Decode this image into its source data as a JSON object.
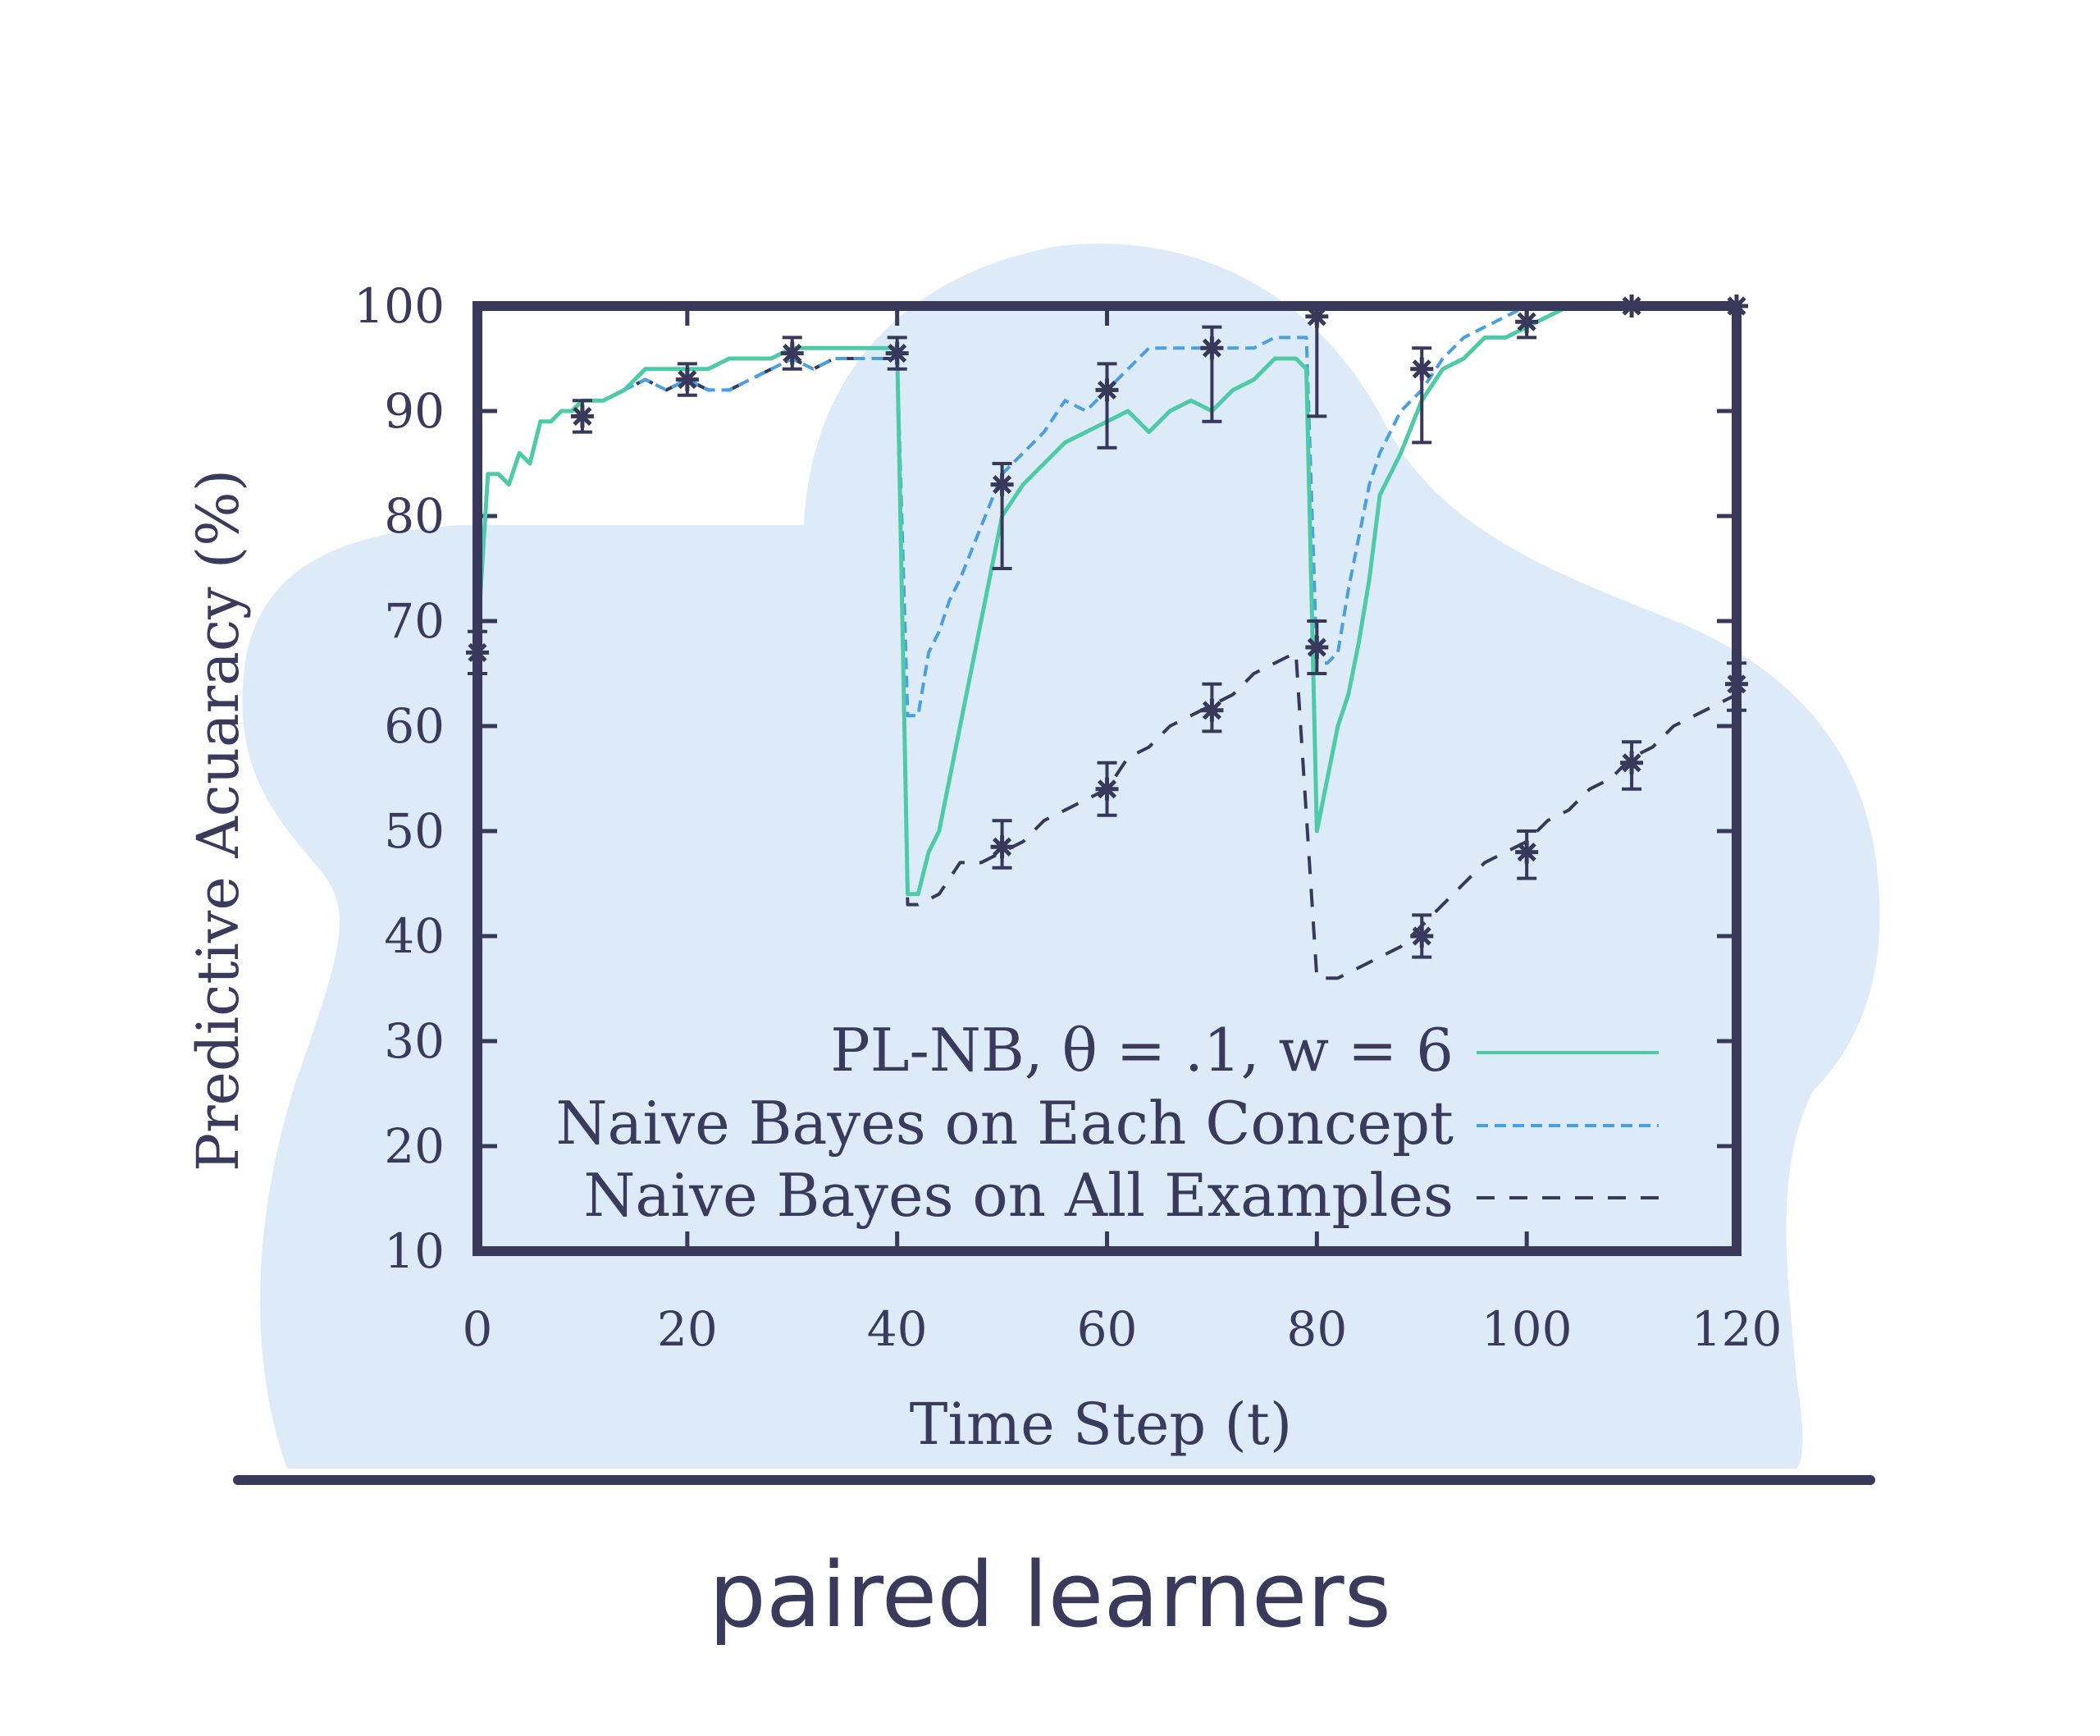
{
  "caption": "paired learners",
  "colors": {
    "background_blob": "#ddebf9",
    "frame": "#38385a",
    "pl_nb": "#4ecba6",
    "nb_each": "#4a9fe3",
    "nb_all": "#38385a",
    "text": "#3a3a5c"
  },
  "chart_data": {
    "type": "line",
    "xlabel": "Time Step (t)",
    "ylabel": "Predictive Acuaracy (%)",
    "xlim": [
      0,
      120
    ],
    "ylim": [
      10,
      100
    ],
    "xticks": [
      "0",
      "20",
      "40",
      "60",
      "80",
      "100",
      "120"
    ],
    "yticks": [
      "10",
      "20",
      "30",
      "40",
      "50",
      "60",
      "70",
      "80",
      "90",
      "100"
    ],
    "grid": false,
    "legend": "bottom-right",
    "series": [
      {
        "name": "PL-NB, θ = .1, w = 6",
        "style": "solid",
        "color": "#4ecba6",
        "x": [
          0,
          1,
          2,
          3,
          4,
          5,
          6,
          7,
          8,
          9,
          10,
          12,
          14,
          16,
          18,
          20,
          22,
          24,
          26,
          28,
          30,
          32,
          34,
          36,
          38,
          40,
          41,
          42,
          43,
          44,
          45,
          46,
          48,
          50,
          52,
          54,
          56,
          58,
          60,
          62,
          64,
          66,
          68,
          70,
          72,
          74,
          76,
          78,
          79,
          80,
          81,
          82,
          83,
          84,
          85,
          86,
          88,
          90,
          92,
          94,
          96,
          98,
          100,
          102,
          104,
          106,
          108,
          110,
          112,
          114,
          116,
          118,
          120
        ],
        "y": [
          68,
          84,
          84,
          83,
          86,
          85,
          89,
          89,
          90,
          90,
          91,
          91,
          92,
          94,
          94,
          94,
          94,
          95,
          95,
          95,
          96,
          96,
          96,
          96,
          96,
          96,
          44,
          44,
          48,
          50,
          55,
          60,
          70,
          80,
          83,
          85,
          87,
          88,
          89,
          90,
          88,
          90,
          91,
          90,
          92,
          93,
          95,
          95,
          94,
          50,
          55,
          60,
          63,
          68,
          74,
          82,
          86,
          91,
          94,
          95,
          97,
          97,
          98,
          99,
          100,
          100,
          100,
          100,
          100,
          100,
          100,
          100,
          100
        ]
      },
      {
        "name": "Naive Bayes on Each Concept",
        "style": "dashed",
        "color": "#4a9fe3",
        "x": [
          0,
          1,
          2,
          3,
          4,
          5,
          6,
          7,
          8,
          9,
          10,
          12,
          14,
          16,
          18,
          20,
          22,
          24,
          26,
          28,
          30,
          32,
          34,
          36,
          38,
          40,
          41,
          42,
          43,
          44,
          45,
          46,
          48,
          50,
          52,
          54,
          56,
          58,
          60,
          62,
          64,
          66,
          68,
          70,
          72,
          74,
          76,
          78,
          79,
          80,
          81,
          82,
          83,
          84,
          85,
          86,
          88,
          90,
          92,
          94,
          96,
          98,
          100,
          102,
          104,
          106,
          108,
          110,
          112,
          114,
          116,
          118,
          120
        ],
        "y": [
          68,
          84,
          84,
          83,
          86,
          85,
          89,
          89,
          90,
          90,
          91,
          91,
          92,
          93,
          92,
          93,
          92,
          92,
          93,
          94,
          95,
          94,
          95,
          95,
          95,
          95,
          61,
          61,
          67,
          69,
          72,
          74,
          79,
          84,
          86,
          88,
          91,
          90,
          92,
          94,
          96,
          96,
          96,
          96,
          96,
          96,
          97,
          97,
          97,
          66,
          66,
          67,
          73,
          78,
          83,
          86,
          90,
          92,
          95,
          97,
          98,
          99,
          100,
          100,
          100,
          100,
          100,
          100,
          100,
          100,
          100,
          100,
          100
        ]
      },
      {
        "name": "Naive Bayes on All Examples",
        "style": "dashed",
        "color": "#38385a",
        "x": [
          0,
          1,
          2,
          3,
          4,
          5,
          6,
          7,
          8,
          9,
          10,
          12,
          14,
          16,
          18,
          20,
          22,
          24,
          26,
          28,
          30,
          32,
          34,
          36,
          38,
          40,
          41,
          42,
          44,
          46,
          48,
          50,
          52,
          54,
          56,
          58,
          60,
          62,
          64,
          66,
          68,
          70,
          72,
          74,
          76,
          78,
          80,
          81,
          82,
          84,
          86,
          88,
          90,
          92,
          94,
          96,
          98,
          100,
          102,
          104,
          106,
          108,
          110,
          112,
          114,
          116,
          118,
          120
        ],
        "y": [
          68,
          84,
          84,
          83,
          86,
          85,
          89,
          89,
          90,
          90,
          91,
          91,
          92,
          93,
          92,
          93,
          92,
          92,
          93,
          94,
          95,
          94,
          95,
          95,
          95,
          95,
          43,
          43,
          44,
          47,
          47,
          48,
          49,
          51,
          52,
          53,
          54,
          57,
          58,
          60,
          61,
          62,
          63,
          65,
          66,
          67,
          36,
          36,
          36,
          37,
          38,
          39,
          41,
          43,
          45,
          47,
          48,
          49,
          51,
          52,
          54,
          55,
          57,
          58,
          60,
          61,
          62,
          63
        ]
      }
    ],
    "errorbars": [
      {
        "x": 0,
        "y": 67,
        "low": 65,
        "high": 69
      },
      {
        "x": 10,
        "y": 89.5,
        "low": 88,
        "high": 91
      },
      {
        "x": 20,
        "y": 93,
        "low": 91.5,
        "high": 94.5
      },
      {
        "x": 30,
        "y": 95.5,
        "low": 94,
        "high": 97
      },
      {
        "x": 40,
        "y": 95.5,
        "low": 94,
        "high": 97
      },
      {
        "x": 50,
        "y": 83,
        "low": 75,
        "high": 85
      },
      {
        "x": 50,
        "y": 48.5,
        "low": 46.5,
        "high": 51
      },
      {
        "x": 60,
        "y": 92,
        "low": 86.5,
        "high": 94.5
      },
      {
        "x": 60,
        "y": 54,
        "low": 51.5,
        "high": 56.5
      },
      {
        "x": 70,
        "y": 96,
        "low": 89,
        "high": 98
      },
      {
        "x": 70,
        "y": 61.5,
        "low": 59.5,
        "high": 64
      },
      {
        "x": 80,
        "y": 99,
        "low": 89.5,
        "high": 100
      },
      {
        "x": 80,
        "y": 67.5,
        "low": 65,
        "high": 70
      },
      {
        "x": 90,
        "y": 94,
        "low": 87,
        "high": 96
      },
      {
        "x": 90,
        "y": 40,
        "low": 38,
        "high": 42
      },
      {
        "x": 100,
        "y": 98.5,
        "low": 97,
        "high": 100
      },
      {
        "x": 100,
        "y": 48,
        "low": 45.5,
        "high": 50
      },
      {
        "x": 110,
        "y": 100,
        "low": 100,
        "high": 100
      },
      {
        "x": 110,
        "y": 56.5,
        "low": 54,
        "high": 58.5
      },
      {
        "x": 120,
        "y": 100,
        "low": 100,
        "high": 100
      },
      {
        "x": 120,
        "y": 64,
        "low": 61.5,
        "high": 66
      }
    ]
  }
}
